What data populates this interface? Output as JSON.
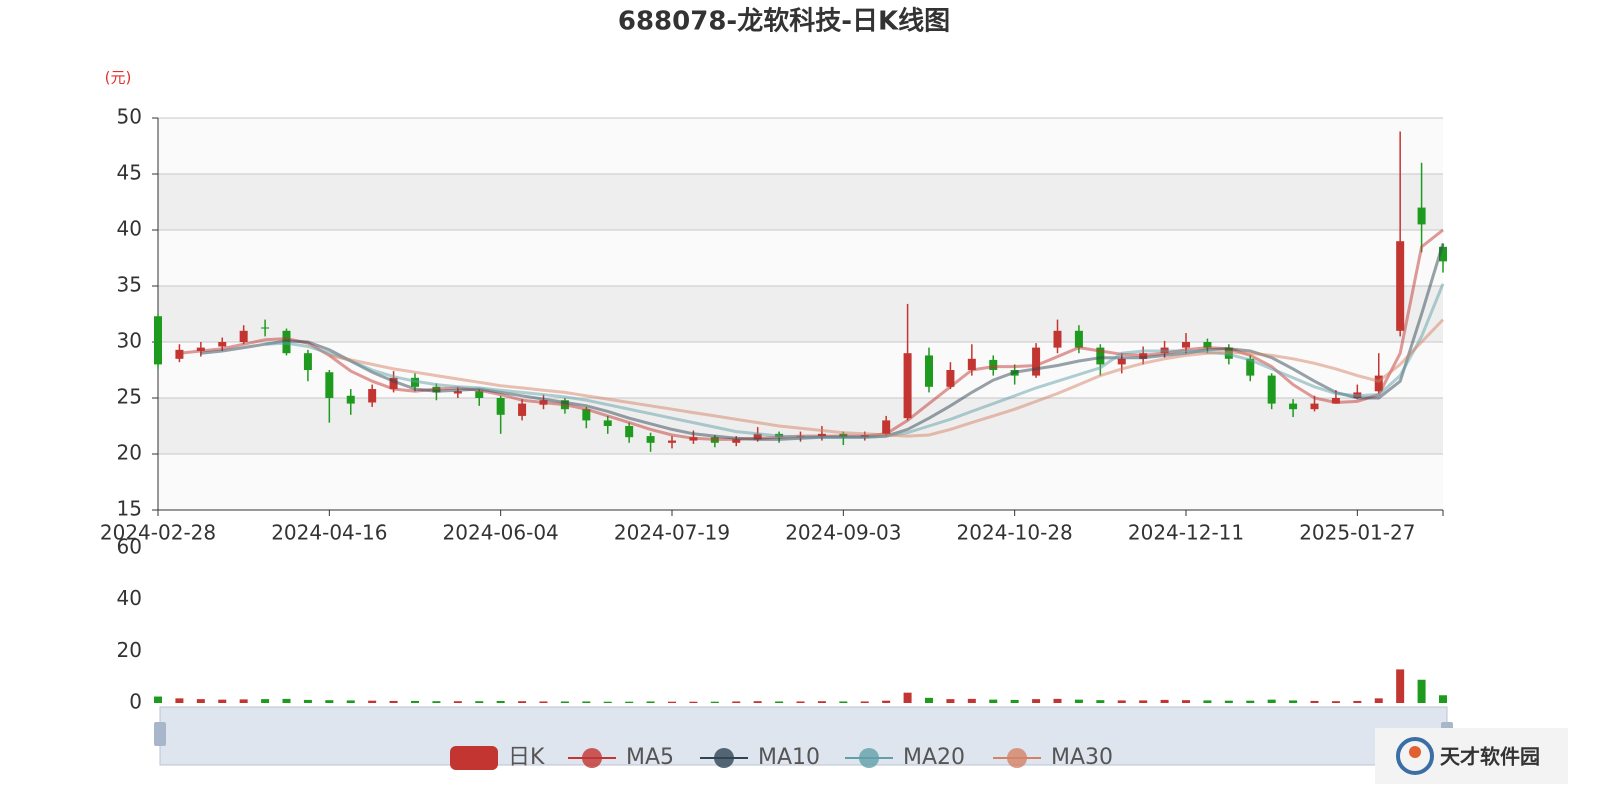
{
  "chart_data": [
    {
      "type": "candlestick",
      "title": "688078-龙软科技-日K线图",
      "y_unit": "(元)",
      "categories": [
        "2024-02-28",
        null,
        null,
        null,
        null,
        null,
        null,
        null,
        "2024-04-16",
        null,
        null,
        null,
        null,
        null,
        null,
        null,
        "2024-06-04",
        null,
        null,
        null,
        null,
        null,
        null,
        null,
        "2024-07-19",
        null,
        null,
        null,
        null,
        null,
        null,
        null,
        "2024-09-03",
        null,
        null,
        null,
        null,
        null,
        null,
        null,
        "2024-10-28",
        null,
        null,
        null,
        null,
        null,
        null,
        null,
        "2024-12-11",
        null,
        null,
        null,
        null,
        null,
        null,
        null,
        "2025-01-27",
        null,
        null,
        null,
        null
      ],
      "ylim": [
        15,
        50
      ],
      "yticks": [
        15,
        20,
        25,
        30,
        35,
        40,
        45,
        50
      ],
      "up_color": "#c23531",
      "down_color": "#1e9a1e",
      "series": [
        {
          "name": "日K",
          "kind": "candle",
          "color": "#c23531",
          "values": [
            [
              32.3,
              28.0,
              27.6,
              32.5
            ],
            [
              28.5,
              29.3,
              28.2,
              29.8
            ],
            [
              29.2,
              29.5,
              28.7,
              30.0
            ],
            [
              29.6,
              30.0,
              29.2,
              30.4
            ],
            [
              30.0,
              31.0,
              29.8,
              31.5
            ],
            [
              31.3,
              31.2,
              30.5,
              32.0
            ],
            [
              31.0,
              29.0,
              28.8,
              31.2
            ],
            [
              29.0,
              27.5,
              26.5,
              29.3
            ],
            [
              27.3,
              25.0,
              22.8,
              27.5
            ],
            [
              25.2,
              24.5,
              23.5,
              25.8
            ],
            [
              24.6,
              25.8,
              24.2,
              26.2
            ],
            [
              25.8,
              26.8,
              25.5,
              27.4
            ],
            [
              26.8,
              26.0,
              25.6,
              27.2
            ],
            [
              26.0,
              25.5,
              24.8,
              26.3
            ],
            [
              25.4,
              25.6,
              25.0,
              26.0
            ],
            [
              25.6,
              25.0,
              24.3,
              25.8
            ],
            [
              25.0,
              23.5,
              21.8,
              25.2
            ],
            [
              23.4,
              24.5,
              23.0,
              24.9
            ],
            [
              24.4,
              24.8,
              24.0,
              25.3
            ],
            [
              24.8,
              24.0,
              23.6,
              25.0
            ],
            [
              24.0,
              23.0,
              22.3,
              24.2
            ],
            [
              23.0,
              22.5,
              21.8,
              23.4
            ],
            [
              22.5,
              21.5,
              21.0,
              22.8
            ],
            [
              21.6,
              21.0,
              20.2,
              21.9
            ],
            [
              21.0,
              21.2,
              20.5,
              21.6
            ],
            [
              21.2,
              21.5,
              20.9,
              22.1
            ],
            [
              21.5,
              21.0,
              20.6,
              21.7
            ],
            [
              21.0,
              21.3,
              20.7,
              21.6
            ],
            [
              21.3,
              21.8,
              21.1,
              22.4
            ],
            [
              21.8,
              21.5,
              21.0,
              22.0
            ],
            [
              21.5,
              21.6,
              21.1,
              22.0
            ],
            [
              21.6,
              21.8,
              21.2,
              22.5
            ],
            [
              21.8,
              21.5,
              20.8,
              22.0
            ],
            [
              21.5,
              21.7,
              21.2,
              22.0
            ],
            [
              21.8,
              23.0,
              21.6,
              23.4
            ],
            [
              23.2,
              29.0,
              23.0,
              33.4
            ],
            [
              28.8,
              26.0,
              25.5,
              29.5
            ],
            [
              26.0,
              27.5,
              25.8,
              28.2
            ],
            [
              27.5,
              28.5,
              27.0,
              29.8
            ],
            [
              28.4,
              27.5,
              27.0,
              28.8
            ],
            [
              27.5,
              27.0,
              26.2,
              28.0
            ],
            [
              27.0,
              29.5,
              26.8,
              29.9
            ],
            [
              29.5,
              31.0,
              29.0,
              32.0
            ],
            [
              31.0,
              29.5,
              29.0,
              31.5
            ],
            [
              29.5,
              28.0,
              27.0,
              29.8
            ],
            [
              28.0,
              28.5,
              27.2,
              29.0
            ],
            [
              28.5,
              29.0,
              28.0,
              29.6
            ],
            [
              29.0,
              29.5,
              28.6,
              30.1
            ],
            [
              29.5,
              30.0,
              29.0,
              30.8
            ],
            [
              30.0,
              29.5,
              29.0,
              30.3
            ],
            [
              29.5,
              28.5,
              28.0,
              29.8
            ],
            [
              28.5,
              27.0,
              26.5,
              28.8
            ],
            [
              27.0,
              24.5,
              24.0,
              27.2
            ],
            [
              24.5,
              24.0,
              23.3,
              24.9
            ],
            [
              24.0,
              24.5,
              23.8,
              25.2
            ],
            [
              24.5,
              25.0,
              24.5,
              25.7
            ],
            [
              25.0,
              25.5,
              24.9,
              26.2
            ],
            [
              25.6,
              27.0,
              25.4,
              29.0
            ],
            [
              31.0,
              39.0,
              30.5,
              48.8
            ],
            [
              42.0,
              40.5,
              38.0,
              46.0
            ],
            [
              38.5,
              37.2,
              36.2,
              38.8
            ]
          ]
        },
        {
          "name": "MA5",
          "kind": "line",
          "color": "#c23531",
          "values": [
            null,
            29.0,
            29.2,
            29.4,
            29.8,
            30.2,
            30.3,
            29.9,
            28.8,
            27.4,
            26.5,
            25.8,
            25.6,
            25.8,
            25.9,
            25.7,
            25.3,
            24.8,
            24.6,
            24.4,
            24.0,
            23.4,
            22.8,
            22.2,
            21.7,
            21.4,
            21.3,
            21.3,
            21.4,
            21.5,
            21.6,
            21.6,
            21.6,
            21.6,
            21.8,
            23.0,
            24.5,
            26.0,
            27.5,
            27.8,
            27.8,
            27.9,
            28.7,
            29.5,
            29.2,
            28.9,
            28.8,
            29.0,
            29.3,
            29.5,
            29.4,
            28.8,
            27.8,
            26.2,
            25.0,
            24.6,
            24.7,
            25.3,
            29.0,
            38.5,
            40.0
          ]
        },
        {
          "name": "MA10",
          "kind": "line",
          "color": "#2f4554",
          "values": [
            null,
            null,
            29.0,
            29.2,
            29.5,
            29.8,
            30.1,
            30.0,
            29.3,
            28.3,
            27.3,
            26.5,
            25.8,
            25.6,
            25.7,
            25.8,
            25.5,
            25.2,
            24.9,
            24.6,
            24.3,
            23.8,
            23.2,
            22.7,
            22.2,
            21.8,
            21.6,
            21.4,
            21.3,
            21.3,
            21.4,
            21.5,
            21.5,
            21.5,
            21.6,
            22.2,
            23.2,
            24.3,
            25.5,
            26.6,
            27.3,
            27.6,
            27.9,
            28.3,
            28.6,
            28.6,
            28.6,
            28.8,
            29.0,
            29.3,
            29.4,
            29.2,
            28.6,
            27.6,
            26.5,
            25.5,
            25.0,
            25.0,
            26.5,
            32.5,
            38.8
          ]
        },
        {
          "name": "MA20",
          "kind": "line",
          "color": "#61a0a8",
          "values": [
            null,
            null,
            null,
            null,
            null,
            29.8,
            29.9,
            29.6,
            29.0,
            28.3,
            27.5,
            26.9,
            26.5,
            26.2,
            26.0,
            25.9,
            25.7,
            25.5,
            25.3,
            25.1,
            24.8,
            24.4,
            24.0,
            23.6,
            23.2,
            22.8,
            22.4,
            22.0,
            21.8,
            21.6,
            21.5,
            21.5,
            21.5,
            21.5,
            21.6,
            21.9,
            22.5,
            23.1,
            23.8,
            24.5,
            25.2,
            25.9,
            26.5,
            27.1,
            27.7,
            29.0,
            29.2,
            29.2,
            29.2,
            29.1,
            28.9,
            28.4,
            27.6,
            26.8,
            26.0,
            25.4,
            25.2,
            25.3,
            27.0,
            30.5,
            35.2
          ]
        },
        {
          "name": "MA30",
          "kind": "line",
          "color": "#d48265",
          "values": [
            null,
            null,
            null,
            null,
            null,
            null,
            null,
            null,
            28.8,
            28.4,
            28.0,
            27.6,
            27.3,
            27.0,
            26.7,
            26.4,
            26.1,
            25.9,
            25.7,
            25.5,
            25.2,
            24.9,
            24.6,
            24.3,
            24.0,
            23.7,
            23.4,
            23.1,
            22.8,
            22.5,
            22.3,
            22.1,
            21.9,
            21.8,
            21.7,
            21.6,
            21.7,
            22.2,
            22.8,
            23.4,
            24.0,
            24.7,
            25.4,
            26.2,
            27.0,
            27.6,
            28.1,
            28.5,
            28.8,
            29.0,
            29.1,
            29.0,
            28.8,
            28.5,
            28.1,
            27.6,
            27.0,
            26.5,
            28.0,
            30.0,
            32.0
          ]
        }
      ]
    },
    {
      "type": "bar",
      "ylim": [
        0,
        60
      ],
      "yticks": [
        0,
        20,
        40,
        60
      ],
      "values": [
        2.5,
        1.8,
        1.5,
        1.3,
        1.4,
        1.5,
        1.6,
        1.2,
        1.1,
        1.0,
        0.9,
        0.8,
        0.8,
        0.7,
        0.7,
        0.7,
        0.8,
        0.7,
        0.6,
        0.6,
        0.6,
        0.5,
        0.5,
        0.6,
        0.5,
        0.5,
        0.5,
        0.6,
        0.7,
        0.6,
        0.6,
        0.7,
        0.6,
        0.6,
        0.9,
        4.0,
        2.0,
        1.5,
        1.6,
        1.3,
        1.2,
        1.5,
        1.6,
        1.3,
        1.1,
        1.0,
        1.0,
        1.2,
        1.1,
        1.0,
        0.9,
        0.9,
        1.3,
        1.0,
        0.8,
        0.7,
        0.8,
        1.8,
        13.0,
        9.0,
        3.0
      ]
    }
  ],
  "watermark": "天才软件园"
}
